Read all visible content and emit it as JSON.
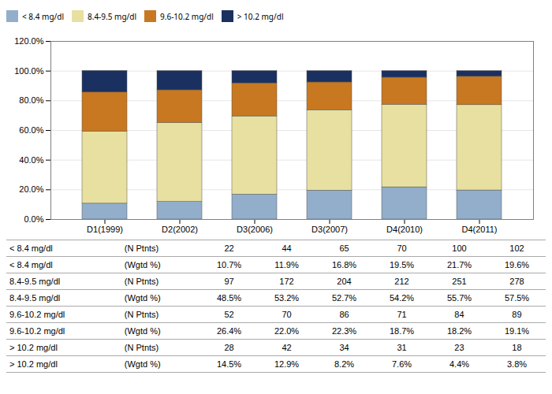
{
  "chart_data": {
    "type": "bar",
    "stacked": true,
    "categories": [
      "D1(1999)",
      "D2(2002)",
      "D3(2006)",
      "D3(2007)",
      "D4(2010)",
      "D4(2011)"
    ],
    "series": [
      {
        "name": "< 8.4 mg/dl",
        "color": "#92AECB",
        "values": [
          10.7,
          11.9,
          16.8,
          19.5,
          21.7,
          19.6
        ]
      },
      {
        "name": "8.4-9.5 mg/dl",
        "color": "#E8E0A0",
        "values": [
          48.5,
          53.2,
          52.7,
          54.2,
          55.7,
          57.5
        ]
      },
      {
        "name": "9.6-10.2 mg/dl",
        "color": "#C87820",
        "values": [
          26.4,
          22.0,
          22.3,
          18.7,
          18.2,
          19.1
        ]
      },
      {
        "name": "> 10.2 mg/dl",
        "color": "#1A3060",
        "values": [
          14.5,
          12.9,
          8.2,
          7.6,
          4.4,
          3.8
        ]
      }
    ],
    "ylim": [
      0,
      120
    ],
    "yticks": [
      {
        "value": 0,
        "label": "0.0%"
      },
      {
        "value": 20,
        "label": "20.0%"
      },
      {
        "value": 40,
        "label": "40.0%"
      },
      {
        "value": 60,
        "label": "60.0%"
      },
      {
        "value": 80,
        "label": "80.0%"
      },
      {
        "value": 100,
        "label": "100.0%"
      },
      {
        "value": 120,
        "label": "120.0%"
      }
    ],
    "grid": true,
    "legend": "top",
    "table_rows": [
      [
        "< 8.4 mg/dl",
        "(N Ptnts)",
        "22",
        "44",
        "65",
        "70",
        "100",
        "102"
      ],
      [
        "< 8.4 mg/dl",
        "(Wgtd %)",
        "10.7%",
        "11.9%",
        "16.8%",
        "19.5%",
        "21.7%",
        "19.6%"
      ],
      [
        "8.4-9.5 mg/dl",
        "(N Ptnts)",
        "97",
        "172",
        "204",
        "212",
        "251",
        "278"
      ],
      [
        "8.4-9.5 mg/dl",
        "(Wgtd %)",
        "48.5%",
        "53.2%",
        "52.7%",
        "54.2%",
        "55.7%",
        "57.5%"
      ],
      [
        "9.6-10.2 mg/dl",
        "(N Ptnts)",
        "52",
        "70",
        "86",
        "71",
        "84",
        "89"
      ],
      [
        "9.6-10.2 mg/dl",
        "(Wgtd %)",
        "26.4%",
        "22.0%",
        "22.3%",
        "18.7%",
        "18.2%",
        "19.1%"
      ],
      [
        "> 10.2 mg/dl",
        "(N Ptnts)",
        "28",
        "42",
        "34",
        "31",
        "23",
        "18"
      ],
      [
        "> 10.2 mg/dl",
        "(Wgtd %)",
        "14.5%",
        "12.9%",
        "8.2%",
        "7.6%",
        "4.4%",
        "3.8%"
      ]
    ]
  }
}
